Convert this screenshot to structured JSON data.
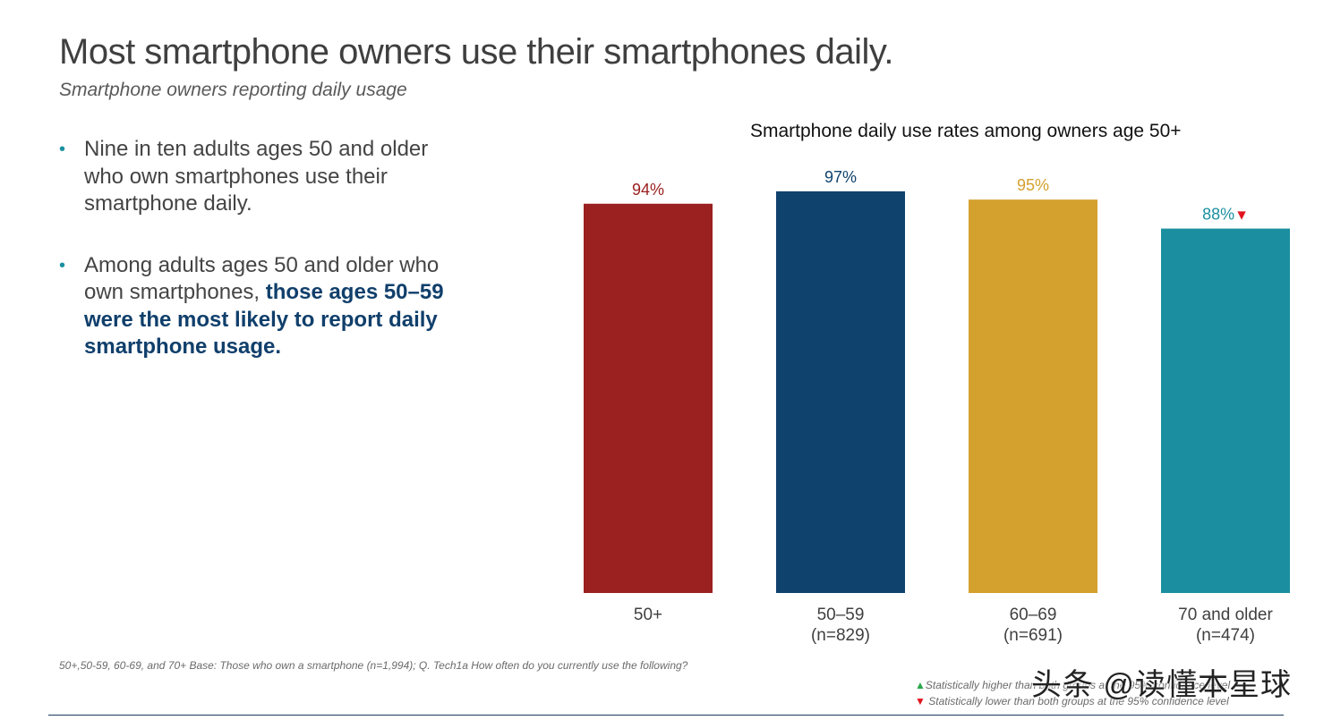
{
  "slide": {
    "title": "Most smartphone owners use their smartphones daily.",
    "subtitle": "Smartphone owners reporting daily usage"
  },
  "bullets": [
    {
      "text": "Nine in ten adults ages 50 and older who own smartphones use their smartphone daily."
    },
    {
      "text": "Among adults ages 50 and older who own smartphones, ",
      "highlight": "those ages 50–59 were the most likely to report daily smartphone usage."
    }
  ],
  "bullet_symbol": "•",
  "chart_data": {
    "type": "bar",
    "title": "Smartphone daily use rates among owners age 50+",
    "categories": [
      "50+",
      "50–59",
      "60–69",
      "70 and older"
    ],
    "sample_sizes": [
      "",
      "(n=829)",
      "(n=691)",
      "(n=474)"
    ],
    "values": [
      94,
      97,
      95,
      88
    ],
    "value_labels": [
      "94%",
      "97%",
      "95%",
      "88%"
    ],
    "significance": [
      "",
      "",
      "",
      "lower"
    ],
    "colors": [
      "#9b2020",
      "#10426e",
      "#d4a02e",
      "#1b8fa0"
    ],
    "ylim": [
      0,
      100
    ],
    "xlabel": "",
    "ylabel": "",
    "grid": false
  },
  "footnote": "50+,50-59, 60-69, and 70+ Base: Those who own a smartphone (n=1,994); Q. Tech1a How often do you currently use the following?",
  "legend": {
    "higher_symbol": "▲",
    "higher_text": "Statistically higher than both groups at the 95% confidence level",
    "lower_symbol": "▼",
    "lower_text": "Statistically lower than both groups at the 95% confidence level"
  },
  "watermark": "头条 @读懂本星球"
}
